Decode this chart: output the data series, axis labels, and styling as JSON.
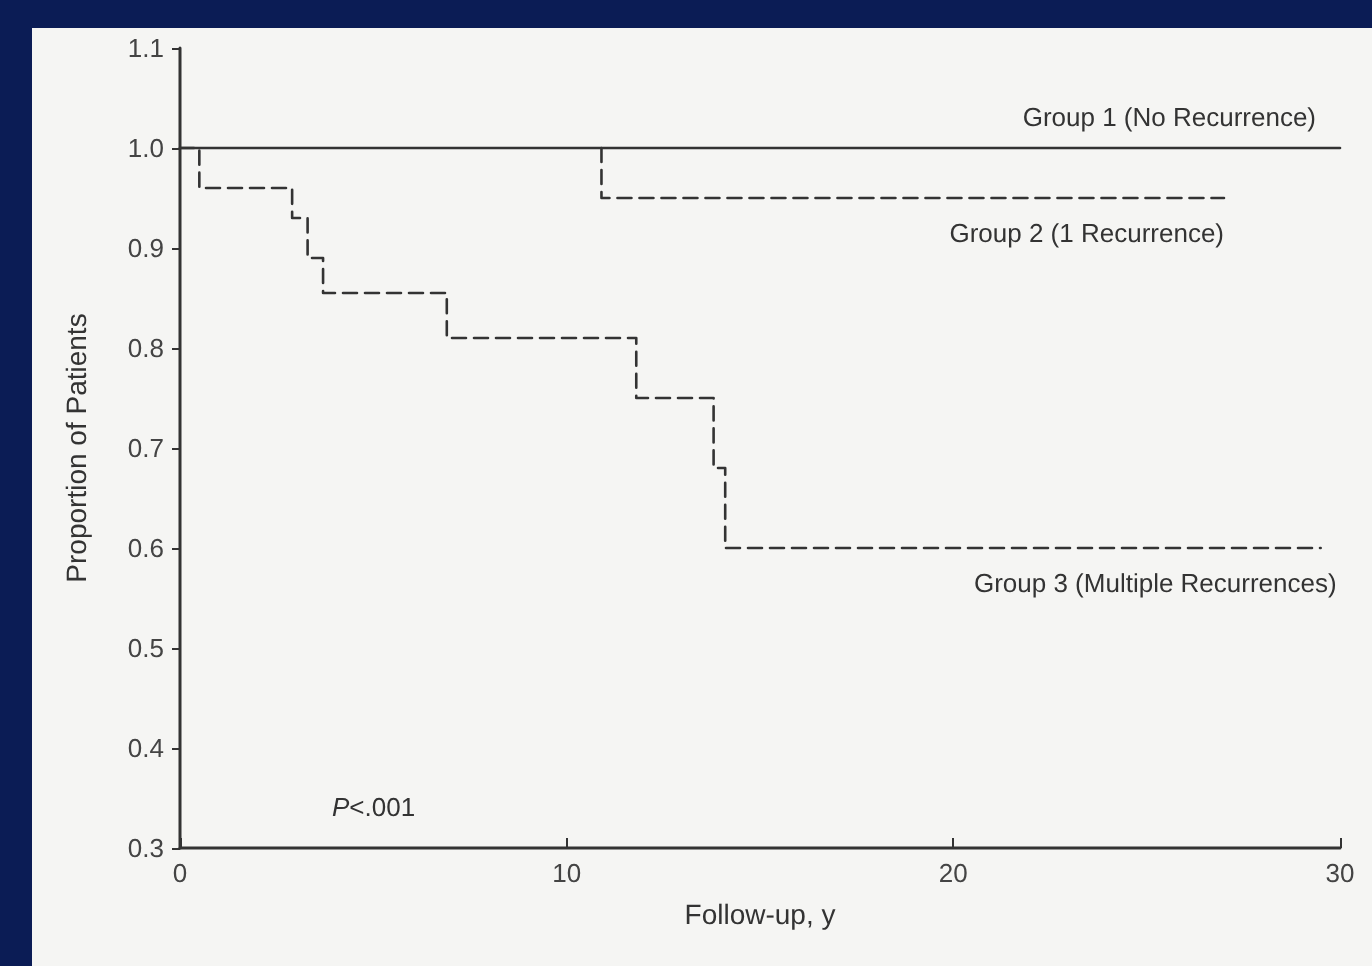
{
  "chart_data": {
    "type": "step",
    "xlabel": "Follow-up, y",
    "ylabel": "Proportion of Patients",
    "xlim": [
      0,
      30
    ],
    "xticks": [
      0,
      10,
      20,
      30
    ],
    "ylim": [
      0.3,
      1.1
    ],
    "yticks": [
      0.3,
      0.4,
      0.5,
      0.6,
      0.7,
      0.8,
      0.9,
      {
        "value": 1,
        "label": "1.0"
      },
      1.1
    ],
    "grid": false,
    "legend": false,
    "marker": "none",
    "annotations": [
      "P<.001"
    ],
    "series": [
      {
        "name": "Group 1 (No Recurrence)",
        "color": "#333333",
        "line_style": "solid",
        "x": [
          0,
          30
        ],
        "values": [
          1,
          1
        ]
      },
      {
        "name": "Group 2 (1 Recurrence)",
        "color": "#333333",
        "line_style": "dashed",
        "x": [
          10.9,
          10.9,
          27
        ],
        "values": [
          1,
          0.95,
          0.95
        ]
      },
      {
        "name": "Group 3 (Multiple Recurrences)",
        "color": "#333333",
        "line_style": "dashed",
        "x": [
          0,
          0.5,
          2.9,
          3.3,
          3.7,
          6.9,
          11.8,
          13.8,
          14.1,
          29.5
        ],
        "values": [
          1,
          0.96,
          0.93,
          0.89,
          0.855,
          0.81,
          0.75,
          0.68,
          0.6,
          0.6
        ]
      }
    ]
  }
}
